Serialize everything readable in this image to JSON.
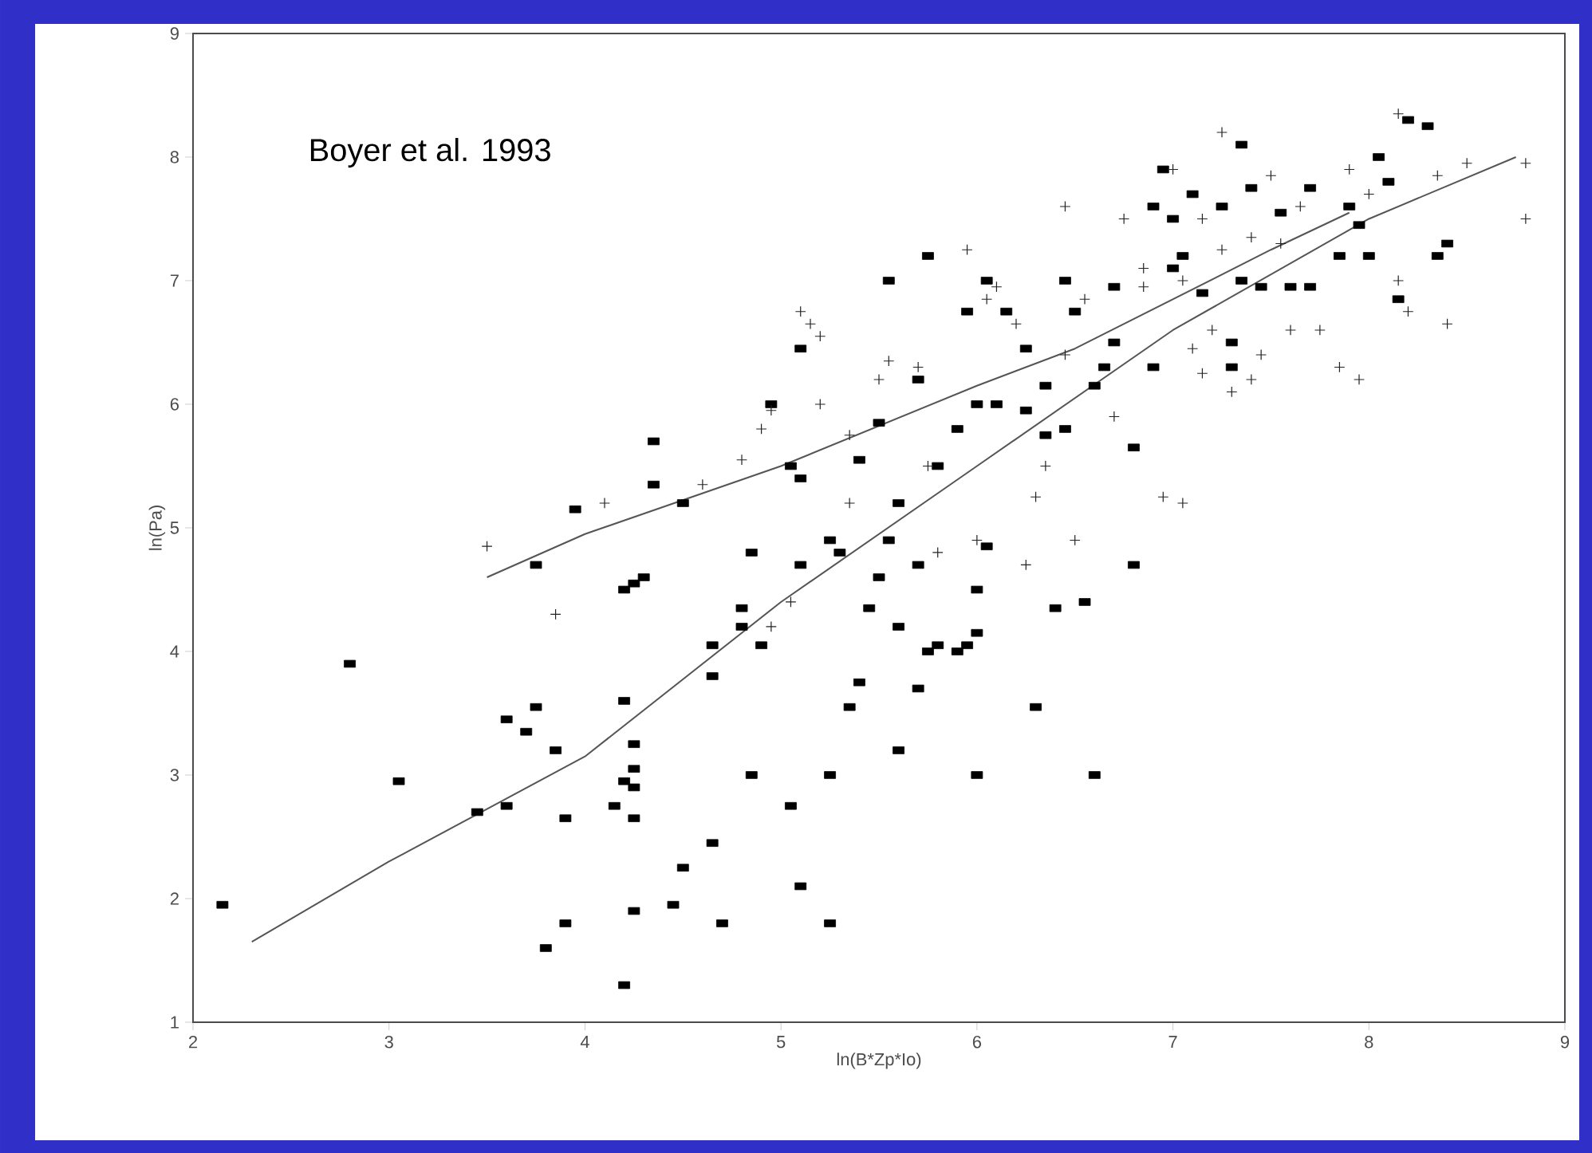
{
  "chart_data": {
    "type": "scatter",
    "xlabel": "ln(B*Zp*Io)",
    "ylabel": "ln(Pa)",
    "annotations": [
      "Boyer et al. 1993"
    ],
    "xlim": [
      2,
      9
    ],
    "ylim": [
      1,
      9
    ],
    "xticks": [
      2,
      3,
      4,
      5,
      6,
      7,
      8,
      9
    ],
    "yticks": [
      1,
      2,
      3,
      4,
      5,
      6,
      7,
      8,
      9
    ],
    "grid": false,
    "series": [
      {
        "marker": "square",
        "color": "#000000",
        "x": [
          2.15,
          2.8,
          3.05,
          3.45,
          3.6,
          3.6,
          3.7,
          3.75,
          3.75,
          3.85,
          3.8,
          3.9,
          3.9,
          3.95,
          4.15,
          4.2,
          4.2,
          4.2,
          4.25,
          4.25,
          4.25,
          4.25,
          4.25,
          4.25,
          4.2,
          4.3,
          4.35,
          4.35,
          4.5,
          4.5,
          4.45,
          4.65,
          4.65,
          4.65,
          4.7,
          4.8,
          4.8,
          4.85,
          4.85,
          4.9,
          4.95,
          5.05,
          5.05,
          5.1,
          5.1,
          5.1,
          5.1,
          5.25,
          5.25,
          5.25,
          5.3,
          5.35,
          5.4,
          5.4,
          5.45,
          5.5,
          5.5,
          5.55,
          5.55,
          5.6,
          5.6,
          5.6,
          5.7,
          5.7,
          5.7,
          5.75,
          5.75,
          5.8,
          5.8,
          5.9,
          5.9,
          5.95,
          5.95,
          6.0,
          6.0,
          6.0,
          6.0,
          6.05,
          6.05,
          6.1,
          6.15,
          6.25,
          6.25,
          6.3,
          6.35,
          6.35,
          6.4,
          6.45,
          6.45,
          6.5,
          6.55,
          6.6,
          6.6,
          6.65,
          6.7,
          6.7,
          6.8,
          6.8,
          6.9,
          6.9,
          6.95,
          7.0,
          7.0,
          7.05,
          7.1,
          7.15,
          7.25,
          7.3,
          7.3,
          7.35,
          7.35,
          7.4,
          7.45,
          7.55,
          7.6,
          7.7,
          7.7,
          7.85,
          7.9,
          7.95,
          8.0,
          8.05,
          8.1,
          8.15,
          8.2,
          8.3,
          8.35,
          8.4
        ],
        "values": [
          1.95,
          3.9,
          2.95,
          2.7,
          2.75,
          3.45,
          3.35,
          3.55,
          4.7,
          3.2,
          1.6,
          1.8,
          2.65,
          5.15,
          2.75,
          2.95,
          3.6,
          4.5,
          4.55,
          3.25,
          3.05,
          2.9,
          2.65,
          1.9,
          1.3,
          4.6,
          5.35,
          5.7,
          5.2,
          2.25,
          1.95,
          2.45,
          3.8,
          4.05,
          1.8,
          4.2,
          4.35,
          4.8,
          3.0,
          4.05,
          6.0,
          2.75,
          5.5,
          5.4,
          6.45,
          2.1,
          4.7,
          3.0,
          4.9,
          1.8,
          4.8,
          3.55,
          3.75,
          5.55,
          4.35,
          4.6,
          5.85,
          4.9,
          7.0,
          5.2,
          3.2,
          4.2,
          6.2,
          3.7,
          4.7,
          7.2,
          4.0,
          5.5,
          4.05,
          4.0,
          5.8,
          4.05,
          6.75,
          6.0,
          4.5,
          4.15,
          3.0,
          7.0,
          4.85,
          6.0,
          6.75,
          6.45,
          5.95,
          3.55,
          5.75,
          6.15,
          4.35,
          7.0,
          5.8,
          6.75,
          4.4,
          6.15,
          3.0,
          6.3,
          6.5,
          6.95,
          4.7,
          5.65,
          6.3,
          7.6,
          7.9,
          7.5,
          7.1,
          7.2,
          7.7,
          6.9,
          7.6,
          6.3,
          6.5,
          7.0,
          8.1,
          7.75,
          6.95,
          7.55,
          6.95,
          6.95,
          7.75,
          7.2,
          7.6,
          7.45,
          7.2,
          8.0,
          7.8,
          6.85,
          8.3,
          8.25,
          7.2,
          7.3
        ]
      },
      {
        "marker": "cross",
        "color": "#222222",
        "x": [
          3.5,
          3.85,
          4.1,
          4.6,
          4.8,
          4.9,
          4.95,
          4.95,
          5.05,
          5.1,
          5.15,
          5.2,
          5.2,
          5.35,
          5.35,
          5.5,
          5.55,
          5.7,
          5.75,
          5.8,
          5.95,
          6.0,
          6.05,
          6.1,
          6.2,
          6.25,
          6.3,
          6.35,
          6.45,
          6.45,
          6.5,
          6.55,
          6.7,
          6.75,
          6.85,
          6.95,
          7.05,
          7.05,
          7.1,
          7.15,
          7.2,
          7.25,
          7.25,
          7.3,
          7.4,
          7.45,
          7.5,
          7.55,
          7.6,
          7.65,
          7.75,
          7.85,
          7.9,
          7.95,
          8.0,
          8.15,
          8.15,
          8.2,
          8.35,
          8.4,
          8.5,
          8.8,
          8.8,
          7.0,
          7.4,
          7.15,
          6.85
        ],
        "values": [
          4.85,
          4.3,
          5.2,
          5.35,
          5.55,
          5.8,
          5.95,
          4.2,
          4.4,
          6.75,
          6.65,
          6.55,
          6.0,
          5.75,
          5.2,
          6.2,
          6.35,
          6.3,
          5.5,
          4.8,
          7.25,
          4.9,
          6.85,
          6.95,
          6.65,
          4.7,
          5.25,
          5.5,
          7.6,
          6.4,
          4.9,
          6.85,
          5.9,
          7.5,
          7.1,
          5.25,
          5.2,
          7.0,
          6.45,
          6.25,
          6.6,
          8.2,
          7.25,
          6.1,
          6.2,
          6.4,
          7.85,
          7.3,
          6.6,
          7.6,
          6.6,
          6.3,
          7.9,
          6.2,
          7.7,
          8.35,
          7.0,
          6.75,
          7.85,
          6.65,
          7.95,
          7.5,
          7.95,
          7.9,
          7.35,
          7.5,
          6.95
        ]
      },
      {
        "type": "line",
        "line_style": "solid",
        "color": "#555555",
        "x": [
          2.3,
          3.0,
          4.0,
          5.0,
          6.0,
          7.0,
          7.5,
          8.0,
          8.75
        ],
        "values": [
          1.65,
          2.3,
          3.15,
          4.4,
          5.5,
          6.6,
          7.05,
          7.5,
          8.0
        ]
      },
      {
        "type": "line",
        "line_style": "solid",
        "color": "#555555",
        "x": [
          3.5,
          4.0,
          5.0,
          6.0,
          6.5,
          7.0,
          7.5,
          7.9
        ],
        "values": [
          4.6,
          4.95,
          5.5,
          6.15,
          6.45,
          6.85,
          7.25,
          7.55
        ]
      }
    ]
  }
}
